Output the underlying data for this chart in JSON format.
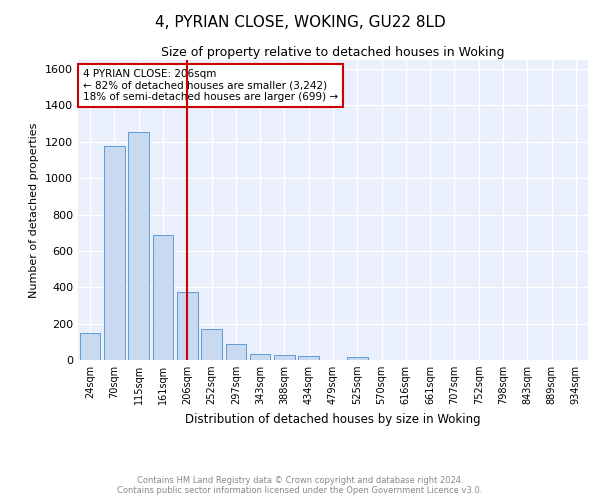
{
  "title": "4, PYRIAN CLOSE, WOKING, GU22 8LD",
  "subtitle": "Size of property relative to detached houses in Woking",
  "xlabel": "Distribution of detached houses by size in Woking",
  "ylabel": "Number of detached properties",
  "bar_labels": [
    "24sqm",
    "70sqm",
    "115sqm",
    "161sqm",
    "206sqm",
    "252sqm",
    "297sqm",
    "343sqm",
    "388sqm",
    "434sqm",
    "479sqm",
    "525sqm",
    "570sqm",
    "616sqm",
    "661sqm",
    "707sqm",
    "752sqm",
    "798sqm",
    "843sqm",
    "889sqm",
    "934sqm"
  ],
  "bar_values": [
    148,
    1175,
    1255,
    690,
    375,
    170,
    88,
    35,
    25,
    20,
    0,
    15,
    0,
    0,
    0,
    0,
    0,
    0,
    0,
    0,
    0
  ],
  "bar_color": "#c9d9f0",
  "bar_edgecolor": "#5b9bd5",
  "red_line_index": 4,
  "annotation_text": "4 PYRIAN CLOSE: 206sqm\n← 82% of detached houses are smaller (3,242)\n18% of semi-detached houses are larger (699) →",
  "annotation_box_color": "#ffffff",
  "annotation_box_edgecolor": "#cc0000",
  "ylim": [
    0,
    1650
  ],
  "yticks": [
    0,
    200,
    400,
    600,
    800,
    1000,
    1200,
    1400,
    1600
  ],
  "bg_color": "#eaf0fb",
  "grid_color": "#ffffff",
  "footer_line1": "Contains HM Land Registry data © Crown copyright and database right 2024.",
  "footer_line2": "Contains public sector information licensed under the Open Government Licence v3.0."
}
